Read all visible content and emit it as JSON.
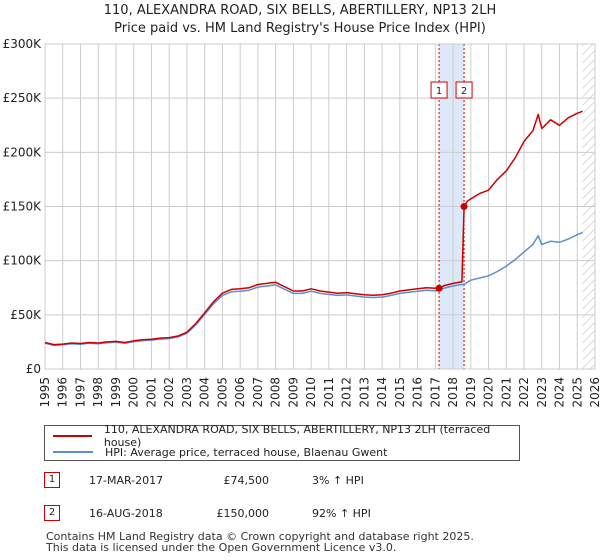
{
  "chart_data": {
    "type": "line",
    "title": "110, ALEXANDRA ROAD, SIX BELLS, ABERTILLERY, NP13 2LH",
    "subtitle": "Price paid vs. HM Land Registry's House Price Index (HPI)",
    "xlabel": "",
    "ylabel": "",
    "xlim": [
      1995,
      2026
    ],
    "ylim": [
      0,
      300000
    ],
    "x_ticks": [
      "1995",
      "1996",
      "1997",
      "1998",
      "1999",
      "2000",
      "2001",
      "2002",
      "2003",
      "2004",
      "2005",
      "2006",
      "2007",
      "2008",
      "2009",
      "2010",
      "2011",
      "2012",
      "2013",
      "2014",
      "2015",
      "2016",
      "2017",
      "2018",
      "2019",
      "2020",
      "2021",
      "2022",
      "2023",
      "2024",
      "2025",
      "2026"
    ],
    "y_ticks": [
      {
        "value": 0,
        "label": "£0"
      },
      {
        "value": 50000,
        "label": "£50K"
      },
      {
        "value": 100000,
        "label": "£100K"
      },
      {
        "value": 150000,
        "label": "£150K"
      },
      {
        "value": 200000,
        "label": "£200K"
      },
      {
        "value": 250000,
        "label": "£250K"
      },
      {
        "value": 300000,
        "label": "£300K"
      }
    ],
    "grid": true,
    "series": [
      {
        "name": "110, ALEXANDRA ROAD, SIX BELLS, ABERTILLERY, NP13 2LH (terraced house)",
        "color": "#cc0000",
        "x": [
          1995.0,
          1995.5,
          1996.0,
          1996.5,
          1997.0,
          1997.5,
          1998.0,
          1998.5,
          1999.0,
          1999.5,
          2000.0,
          2000.5,
          2001.0,
          2001.5,
          2002.0,
          2002.5,
          2003.0,
          2003.5,
          2004.0,
          2004.5,
          2005.0,
          2005.5,
          2006.0,
          2006.5,
          2007.0,
          2007.5,
          2008.0,
          2008.5,
          2009.0,
          2009.5,
          2010.0,
          2010.5,
          2011.0,
          2011.5,
          2012.0,
          2012.5,
          2013.0,
          2013.5,
          2014.0,
          2014.5,
          2015.0,
          2015.5,
          2016.0,
          2016.5,
          2017.0,
          2017.21,
          2017.5,
          2018.0,
          2018.5,
          2018.62,
          2018.8,
          2019.0,
          2019.5,
          2020.0,
          2020.5,
          2021.0,
          2021.5,
          2022.0,
          2022.5,
          2022.8,
          2023.0,
          2023.5,
          2024.0,
          2024.5,
          2025.0,
          2025.3
        ],
        "y": [
          24500,
          22500,
          23000,
          24000,
          23500,
          24500,
          24000,
          25000,
          25500,
          24500,
          26000,
          27000,
          27500,
          28500,
          29000,
          30500,
          34000,
          42000,
          52000,
          62000,
          70000,
          73500,
          74000,
          75000,
          78000,
          79000,
          80000,
          76000,
          72000,
          72000,
          74000,
          72000,
          71000,
          70000,
          70500,
          69500,
          68500,
          68000,
          68500,
          70000,
          72000,
          73000,
          74000,
          75000,
          74500,
          74500,
          77000,
          79000,
          80500,
          150000,
          155000,
          157000,
          162000,
          165000,
          175000,
          183000,
          195000,
          210000,
          220000,
          235000,
          222000,
          230000,
          225000,
          232000,
          236000,
          238000
        ]
      },
      {
        "name": "HPI: Average price, terraced house, Blaenau Gwent",
        "color": "#5b8fd0",
        "x": [
          1995.0,
          1995.5,
          1996.0,
          1996.5,
          1997.0,
          1997.5,
          1998.0,
          1998.5,
          1999.0,
          1999.5,
          2000.0,
          2000.5,
          2001.0,
          2001.5,
          2002.0,
          2002.5,
          2003.0,
          2003.5,
          2004.0,
          2004.5,
          2005.0,
          2005.5,
          2006.0,
          2006.5,
          2007.0,
          2007.5,
          2008.0,
          2008.5,
          2009.0,
          2009.5,
          2010.0,
          2010.5,
          2011.0,
          2011.5,
          2012.0,
          2012.5,
          2013.0,
          2013.5,
          2014.0,
          2014.5,
          2015.0,
          2015.5,
          2016.0,
          2016.5,
          2017.0,
          2017.21,
          2017.5,
          2018.0,
          2018.5,
          2018.62,
          2018.8,
          2019.0,
          2019.5,
          2020.0,
          2020.5,
          2021.0,
          2021.5,
          2022.0,
          2022.5,
          2022.8,
          2023.0,
          2023.5,
          2024.0,
          2024.5,
          2025.0,
          2025.3
        ],
        "y": [
          23800,
          21800,
          22300,
          23300,
          22800,
          23700,
          23300,
          24200,
          24700,
          23700,
          25200,
          26200,
          26700,
          27600,
          28100,
          29600,
          33000,
          40700,
          50400,
          60100,
          67900,
          71300,
          71800,
          72700,
          75600,
          76600,
          77600,
          73700,
          69800,
          69800,
          71800,
          69800,
          68900,
          67900,
          68400,
          67400,
          66400,
          66000,
          66400,
          67900,
          69800,
          70800,
          71800,
          72700,
          72300,
          72300,
          74700,
          76600,
          78100,
          78000,
          80000,
          82000,
          84000,
          86000,
          90000,
          95000,
          101000,
          108000,
          115000,
          123000,
          115000,
          118000,
          117000,
          120000,
          124000,
          126000
        ]
      }
    ],
    "annotations": [
      {
        "label": "1",
        "x": 2017.21,
        "y": 74500
      },
      {
        "label": "2",
        "x": 2018.62,
        "y": 150000
      }
    ],
    "shaded_span": [
      2017.21,
      2018.62
    ],
    "hatched_after": 2025.3
  },
  "legend": {
    "item1": "110, ALEXANDRA ROAD, SIX BELLS, ABERTILLERY, NP13 2LH (terraced house)",
    "item2": "HPI: Average price, terraced house, Blaenau Gwent"
  },
  "sales": [
    {
      "num": "1",
      "date": "17-MAR-2017",
      "price": "£74,500",
      "hpi": "3% ↑ HPI"
    },
    {
      "num": "2",
      "date": "16-AUG-2018",
      "price": "£150,000",
      "hpi": "92% ↑ HPI"
    }
  ],
  "footer": {
    "line1": "Contains HM Land Registry data © Crown copyright and database right 2025.",
    "line2": "This data is licensed under the Open Government Licence v3.0."
  },
  "colors": {
    "price_line": "#cc0000",
    "hpi_line": "#5b8fd0",
    "grid": "#cccccc",
    "shade": "#dde8f8",
    "marker_border": "#cc0000"
  }
}
